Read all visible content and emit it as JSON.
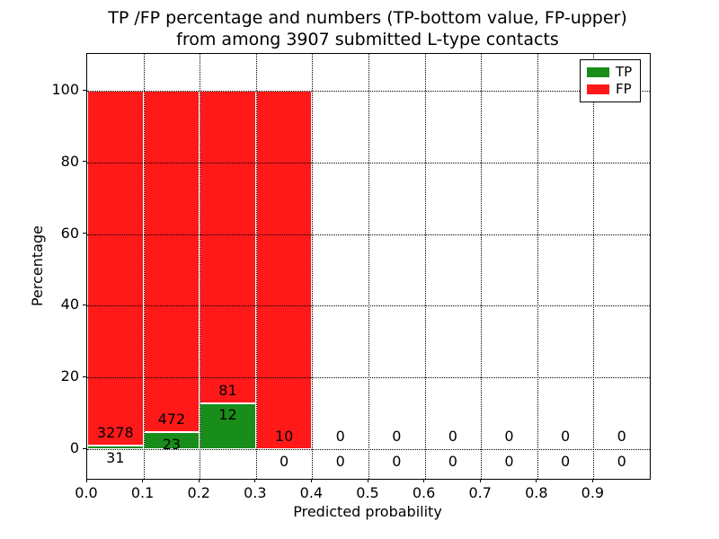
{
  "figure": {
    "title_line1": "TP /FP percentage and numbers (TP-bottom value, FP-upper)",
    "title_line2": "from among 3907 submitted L-type contacts"
  },
  "chart_data": {
    "type": "bar",
    "stacked": true,
    "title": "TP /FP percentage and numbers (TP-bottom value, FP-upper) from among 3907 submitted L-type contacts",
    "xlabel": "Predicted probability",
    "ylabel": "Percentage",
    "xlim": [
      0.0,
      1.0
    ],
    "ylim": [
      -8.3,
      110.5
    ],
    "grid": true,
    "grid_style": "dotted",
    "legend_position": "upper right",
    "bar_width": 0.1,
    "bins": [
      0.0,
      0.1,
      0.2,
      0.3,
      0.4,
      0.5,
      0.6,
      0.7,
      0.8,
      0.9
    ],
    "xticks": [
      "0.0",
      "0.1",
      "0.2",
      "0.3",
      "0.4",
      "0.5",
      "0.6",
      "0.7",
      "0.8",
      "0.9"
    ],
    "yticks": [
      0,
      20,
      40,
      60,
      80,
      100
    ],
    "series": [
      {
        "name": "TP",
        "color": "#198d19",
        "counts": [
          31,
          23,
          12,
          0,
          0,
          0,
          0,
          0,
          0,
          0
        ]
      },
      {
        "name": "FP",
        "color": "#ff1919",
        "counts": [
          3278,
          472,
          81,
          10,
          0,
          0,
          0,
          0,
          0,
          0
        ]
      }
    ],
    "tp_percent": [
      0.94,
      4.65,
      12.9,
      0.0,
      0,
      0,
      0,
      0,
      0,
      0
    ],
    "fp_percent": [
      99.06,
      95.35,
      87.1,
      100.0,
      0,
      0,
      0,
      0,
      0,
      0
    ],
    "total_submitted": 3907
  },
  "legend": {
    "items": [
      {
        "label": "TP",
        "color": "#198d19"
      },
      {
        "label": "FP",
        "color": "#ff1919"
      }
    ]
  }
}
